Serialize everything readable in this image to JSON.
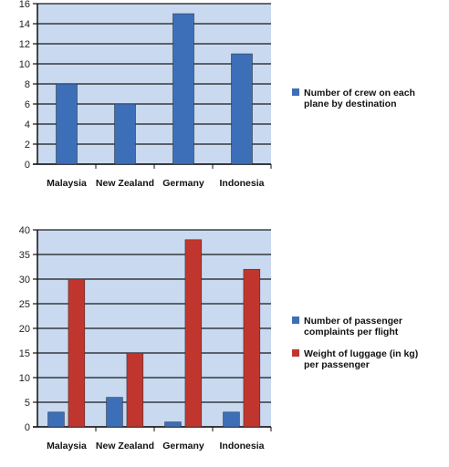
{
  "chart_data": [
    {
      "type": "bar",
      "categories": [
        "Malaysia",
        "New Zealand",
        "Germany",
        "Indonesia"
      ],
      "series": [
        {
          "name": "Number of crew on each plane by destination",
          "values": [
            8,
            6,
            15,
            11
          ],
          "color": "#3c6fb7"
        }
      ],
      "ylim": [
        0,
        16
      ],
      "yticks": [
        0,
        2,
        4,
        6,
        8,
        10,
        12,
        14,
        16
      ],
      "grid": true,
      "legend": "right",
      "legend_lines": [
        [
          "Number of crew on each",
          "plane by destination"
        ]
      ]
    },
    {
      "type": "bar",
      "categories": [
        "Malaysia",
        "New Zealand",
        "Germany",
        "Indonesia"
      ],
      "series": [
        {
          "name": "Number of passenger complaints per flight",
          "values": [
            3,
            6,
            1,
            3
          ],
          "color": "#3c6fb7"
        },
        {
          "name": "Weight of luggage (in kg) per passenger",
          "values": [
            30,
            15,
            38,
            32
          ],
          "color": "#c0362e"
        }
      ],
      "ylim": [
        0,
        40
      ],
      "yticks": [
        0,
        5,
        10,
        15,
        20,
        25,
        30,
        35,
        40
      ],
      "grid": true,
      "legend": "right",
      "legend_lines": [
        [
          "Number of passenger",
          "complaints per flight"
        ],
        [
          "Weight of luggage (in kg)",
          "per passenger"
        ]
      ]
    }
  ],
  "colors": {
    "plot_background": "#c9d9ef",
    "gridline": "#1a1a1a",
    "axis": "#111111"
  }
}
